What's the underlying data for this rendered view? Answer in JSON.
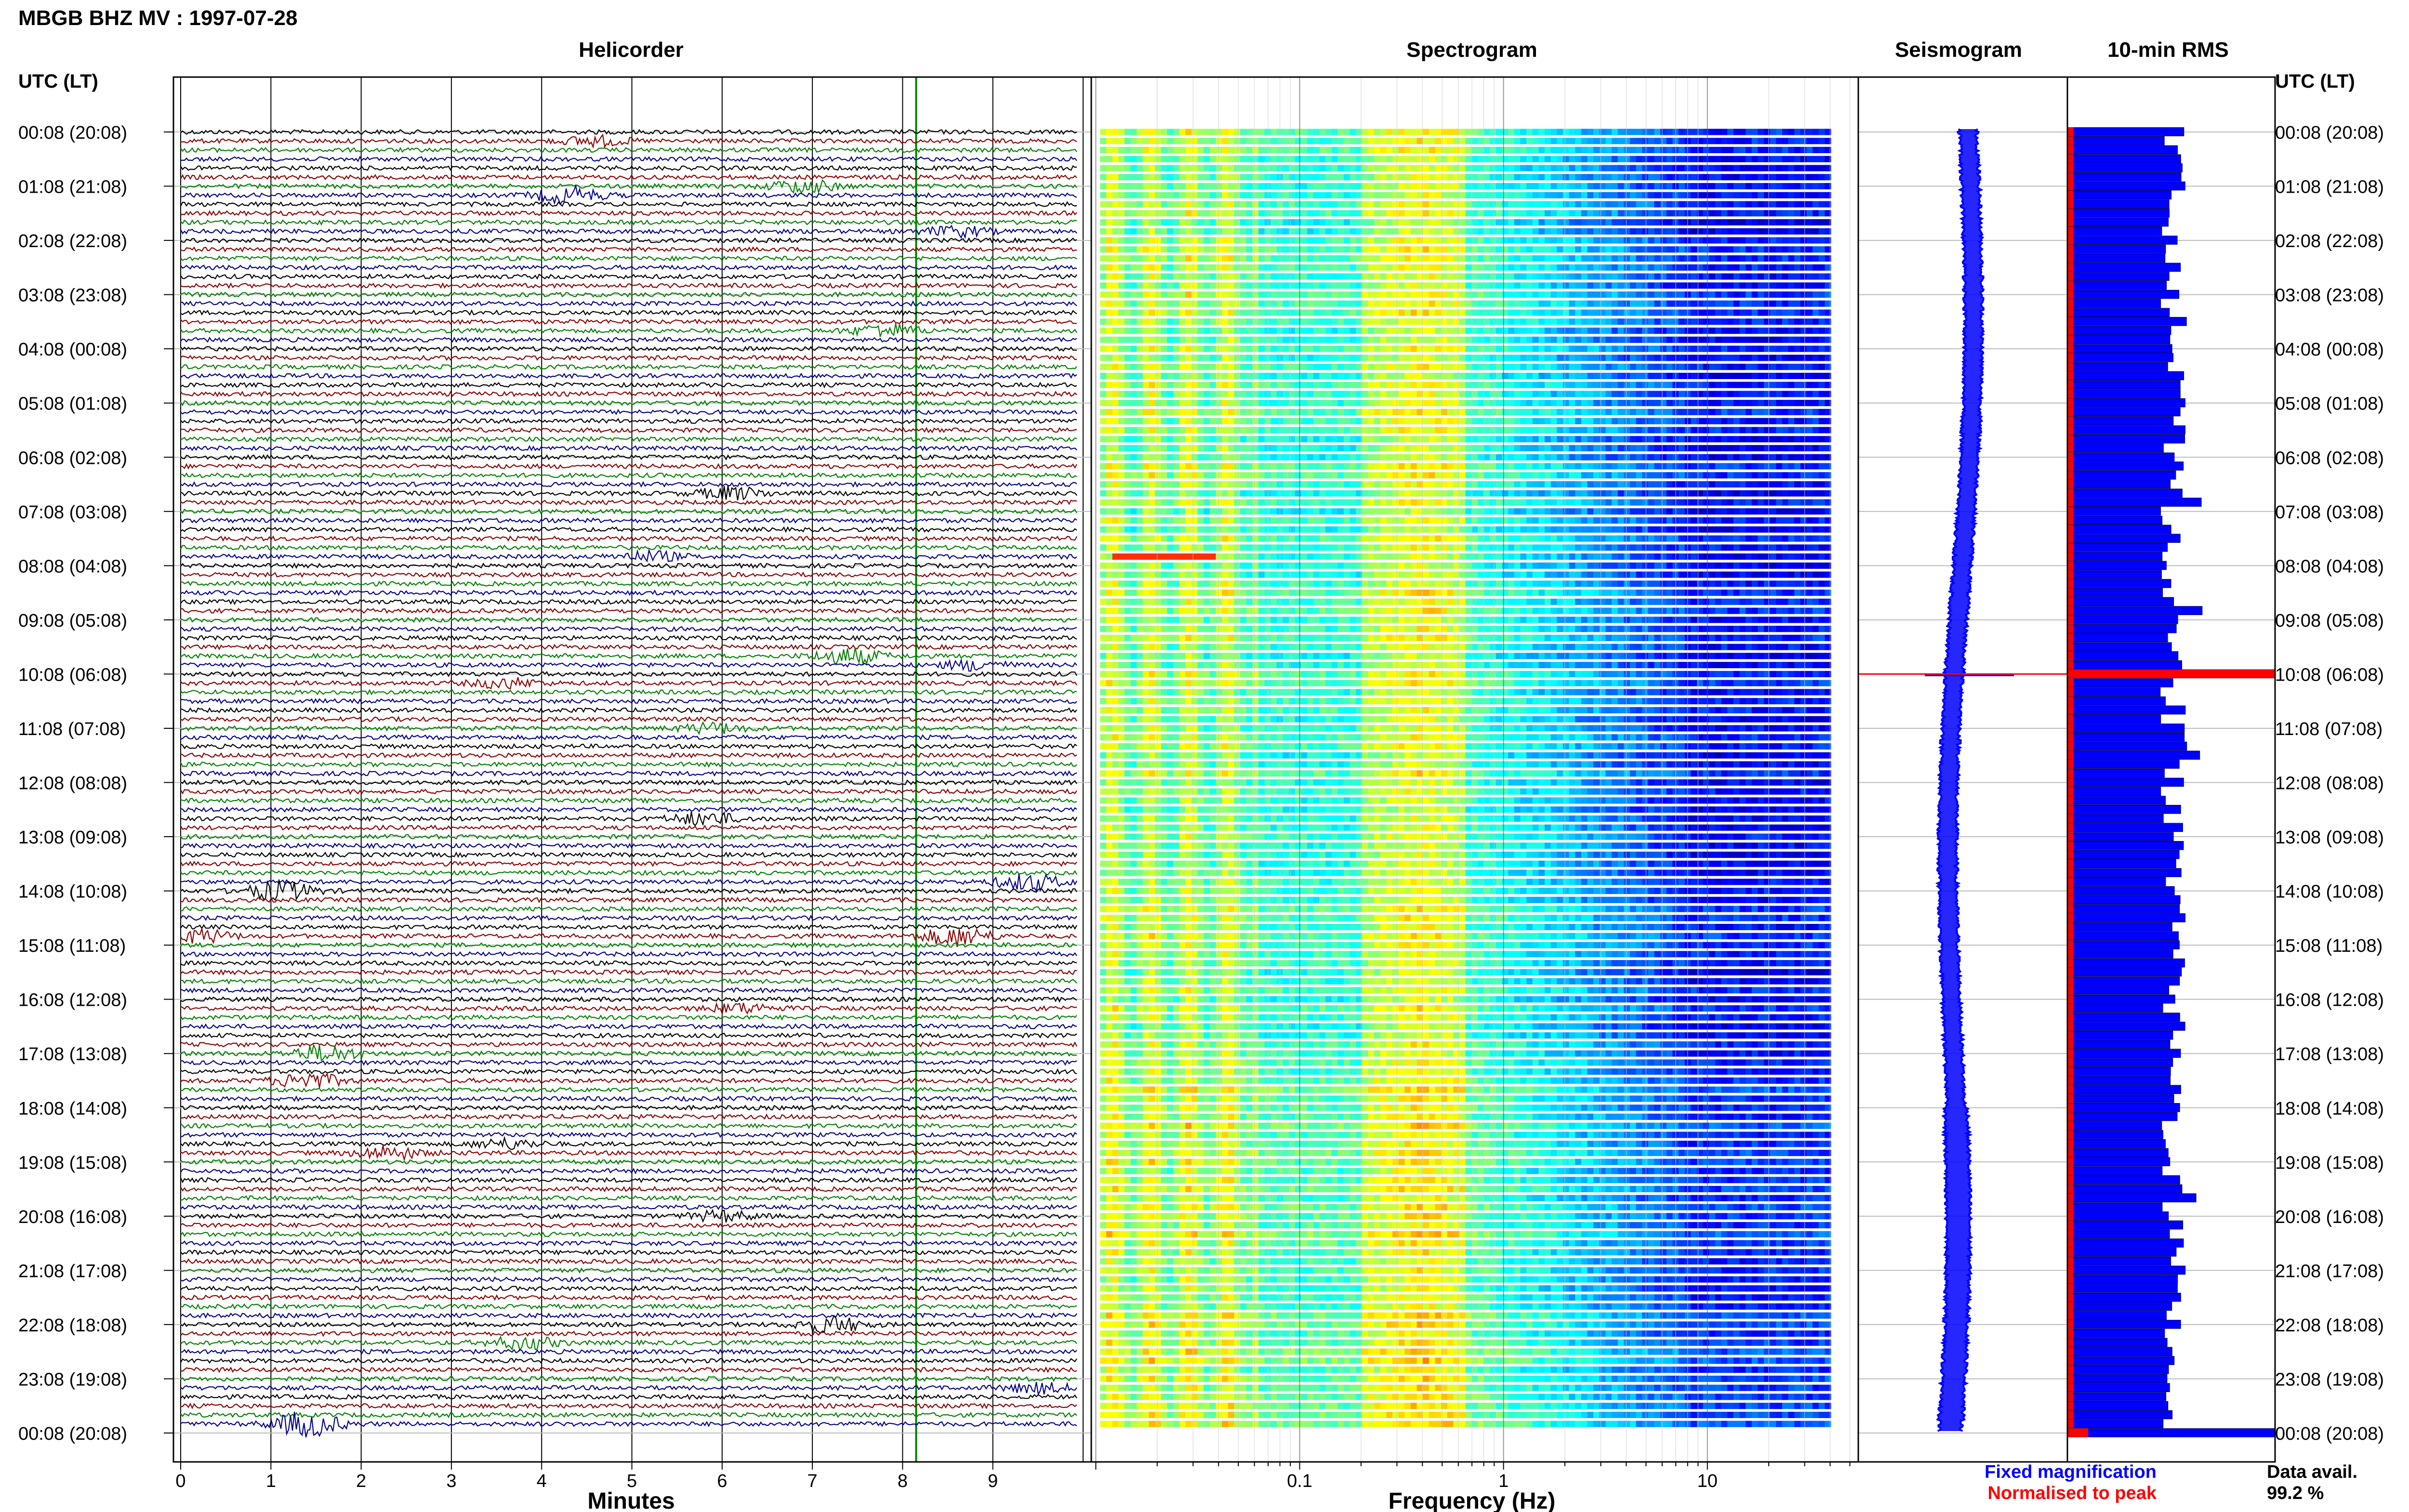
{
  "title": "MBGB BHZ MV : 1997-07-28",
  "axis_header_left": "UTC (LT)",
  "axis_header_right": "UTC (LT)",
  "panels": {
    "helicorder": "Helicorder",
    "spectrogram": "Spectrogram",
    "seismogram": "Seismogram",
    "rms": "10-min RMS"
  },
  "x_labels": {
    "helicorder": "Minutes",
    "spectrogram": "Frequency (Hz)"
  },
  "legend": {
    "fixed": "Fixed magnification",
    "normalised": "Normalised to peak",
    "fixed_color": "#0000ff",
    "normalised_color": "#ff0000"
  },
  "data_avail": {
    "label": "Data avail.",
    "value": "99.2 %"
  },
  "chart_data": [
    {
      "type": "line",
      "name": "helicorder",
      "x_ticks": [
        "0",
        "1",
        "2",
        "3",
        "4",
        "5",
        "6",
        "7",
        "8",
        "9"
      ],
      "x_range_minutes": [
        0,
        10
      ],
      "time_labels": [
        "00:08 (20:08)",
        "01:08 (21:08)",
        "02:08 (22:08)",
        "03:08 (23:08)",
        "04:08 (00:08)",
        "05:08 (01:08)",
        "06:08 (02:08)",
        "07:08 (03:08)",
        "08:08 (04:08)",
        "09:08 (05:08)",
        "10:08 (06:08)",
        "11:08 (07:08)",
        "12:08 (08:08)",
        "13:08 (09:08)",
        "14:08 (10:08)",
        "15:08 (11:08)",
        "16:08 (12:08)",
        "17:08 (13:08)",
        "18:08 (14:08)",
        "19:08 (15:08)",
        "20:08 (16:08)",
        "21:08 (17:08)",
        "22:08 (18:08)",
        "23:08 (19:08)",
        "00:08 (20:08)"
      ],
      "trace_colors": [
        "#000000",
        "#8b0000",
        "#008000",
        "#00008b"
      ],
      "rows": 144,
      "marker_minute": 8.15,
      "marker_color": "#008000",
      "events": [
        {
          "row": 1,
          "minute": 4.6,
          "amp": 3,
          "color": 1
        },
        {
          "row": 6,
          "minute": 6.9,
          "amp": 4,
          "color": 0
        },
        {
          "row": 7,
          "minute": 4.3,
          "amp": 5,
          "color": 2
        },
        {
          "row": 11,
          "minute": 8.6,
          "amp": 3,
          "color": 3
        },
        {
          "row": 22,
          "minute": 7.8,
          "amp": 4,
          "color": 3
        },
        {
          "row": 40,
          "minute": 6.1,
          "amp": 4,
          "color": 3
        },
        {
          "row": 47,
          "minute": 5.2,
          "amp": 3,
          "color": 2
        },
        {
          "row": 58,
          "minute": 7.4,
          "amp": 5,
          "color": 2
        },
        {
          "row": 59,
          "minute": 8.8,
          "amp": 3,
          "color": 3
        },
        {
          "row": 61,
          "minute": 3.6,
          "amp": 3,
          "color": 1
        },
        {
          "row": 66,
          "minute": 5.9,
          "amp": 3,
          "color": 2
        },
        {
          "row": 76,
          "minute": 5.8,
          "amp": 4,
          "color": 0
        },
        {
          "row": 83,
          "minute": 9.4,
          "amp": 5,
          "color": 3
        },
        {
          "row": 84,
          "minute": 1.1,
          "amp": 6,
          "color": 2
        },
        {
          "row": 89,
          "minute": 8.6,
          "amp": 6,
          "color": 1
        },
        {
          "row": 89,
          "minute": 0.2,
          "amp": 4,
          "color": 1
        },
        {
          "row": 97,
          "minute": 6.2,
          "amp": 3,
          "color": 1
        },
        {
          "row": 102,
          "minute": 1.6,
          "amp": 5,
          "color": 3
        },
        {
          "row": 105,
          "minute": 1.4,
          "amp": 5,
          "color": 1
        },
        {
          "row": 112,
          "minute": 3.6,
          "amp": 3,
          "color": 2
        },
        {
          "row": 113,
          "minute": 2.3,
          "amp": 4,
          "color": 1
        },
        {
          "row": 120,
          "minute": 6.0,
          "amp": 3,
          "color": 0
        },
        {
          "row": 132,
          "minute": 7.2,
          "amp": 5,
          "color": 2
        },
        {
          "row": 134,
          "minute": 3.8,
          "amp": 4,
          "color": 1
        },
        {
          "row": 139,
          "minute": 9.5,
          "amp": 3,
          "color": 0
        },
        {
          "row": 143,
          "minute": 1.4,
          "amp": 8,
          "color": 2
        }
      ]
    },
    {
      "type": "heatmap",
      "name": "spectrogram",
      "x_scale": "log",
      "x_range_hz": [
        0.01,
        50
      ],
      "x_ticks": [
        "0.1",
        "1",
        "10"
      ],
      "xlabel": "Frequency (Hz)",
      "colormap": "jet",
      "rows": 144,
      "highlight": {
        "row": 47,
        "freq_range_hz": [
          0.012,
          0.04
        ],
        "color": "#ff3000"
      }
    },
    {
      "type": "line",
      "name": "seismogram",
      "color": "#0000ff",
      "spike_time": "10:08",
      "spike_color": "#ff0000"
    },
    {
      "type": "bar",
      "name": "10-min RMS",
      "orientation": "horizontal",
      "fixed_color": "#0000ff",
      "normalised_color": "#ff0000",
      "peak_rows": [
        60,
        144
      ],
      "row_levels_profile": {
        "min": 0.38,
        "max": 0.65,
        "peak": 1.0
      }
    }
  ]
}
